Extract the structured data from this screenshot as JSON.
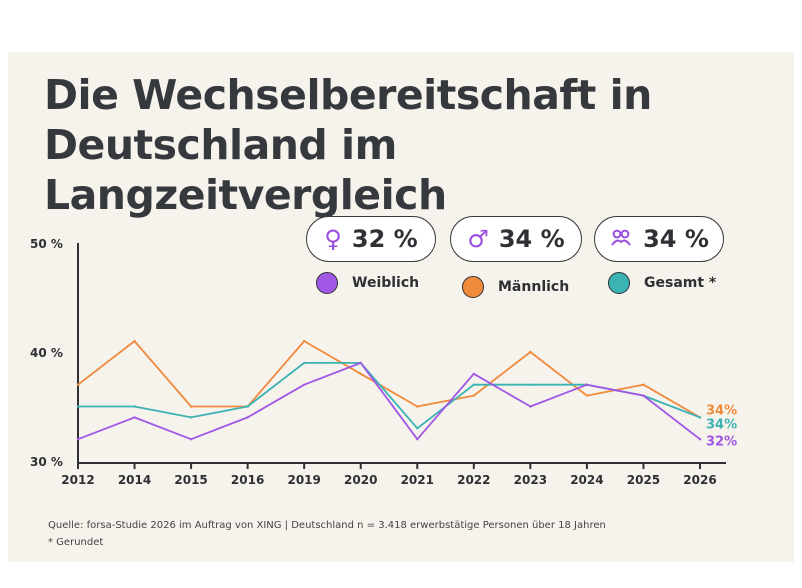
{
  "title_line1": "Die Wechselbereitschaft in",
  "title_line2": "Deutschland im Langzeitvergleich",
  "badges": [
    {
      "value": "32 %",
      "color": "#9b4de0"
    },
    {
      "value": "34 %",
      "color": "#9b4de0"
    },
    {
      "value": "34 %",
      "color": "#9b4de0"
    }
  ],
  "legend": [
    {
      "label": "Weiblich",
      "color": "#a157e6"
    },
    {
      "label": "Männlich",
      "color": "#f08a3c"
    },
    {
      "label": "Gesamt *",
      "color": "#3bb3b3"
    }
  ],
  "footer": {
    "source": "Quelle: forsa-Studie 2026 im Auftrag von XING | Deutschland n = 3.418 erwerbstätige Personen über 18 Jahren",
    "note": "* Gerundet"
  },
  "chart_data": {
    "type": "line",
    "categories": [
      "2012",
      "2014",
      "2015",
      "2016",
      "2019",
      "2020",
      "2021",
      "2022",
      "2023",
      "2024",
      "2025",
      "2026"
    ],
    "ylim": [
      30,
      50
    ],
    "yticks": [
      {
        "value": 30,
        "label": "30 %"
      },
      {
        "value": 40,
        "label": "40 %"
      },
      {
        "value": 50,
        "label": "50 %"
      }
    ],
    "series": [
      {
        "name": "Männlich",
        "color": "#f08a3c",
        "values": [
          37,
          41,
          35,
          35,
          41,
          38,
          35,
          36,
          40,
          36,
          37,
          34
        ],
        "end_label": "34%"
      },
      {
        "name": "Gesamt *",
        "color": "#3bb3b3",
        "values": [
          35,
          35,
          34,
          35,
          39,
          39,
          33,
          37,
          37,
          37,
          36,
          34
        ],
        "end_label": "34%"
      },
      {
        "name": "Weiblich",
        "color": "#a157e6",
        "values": [
          32,
          34,
          32,
          34,
          37,
          39,
          32,
          38,
          35,
          37,
          36,
          32
        ],
        "end_label": "32%"
      }
    ]
  }
}
